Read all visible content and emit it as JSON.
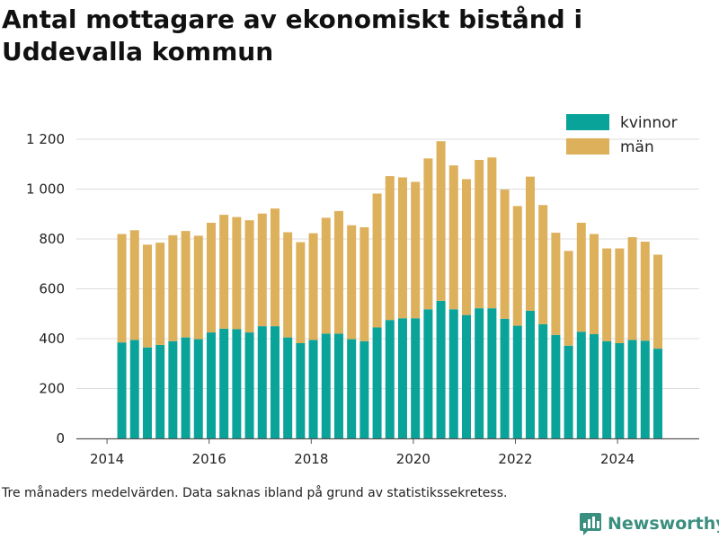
{
  "title": "Antal mottagare av ekonomiskt bistånd i Uddevalla kommun",
  "footnote": "Tre månaders medelvärden. Data saknas ibland på grund av statistikssekretess.",
  "brand": {
    "name": "Newsworthy",
    "icon": "newsworthy-logo-icon"
  },
  "colors": {
    "kvinnor": "#0aa39a",
    "man": "#ddb05c",
    "grid": "#dddddd",
    "axis": "#555555",
    "brand": "#3a8f7e"
  },
  "chart_data": {
    "type": "bar",
    "stacked": true,
    "title": "Antal mottagare av ekonomiskt bistånd i Uddevalla kommun",
    "xlabel": "",
    "ylabel": "",
    "xlim": [
      2013.4,
      2025.6
    ],
    "ylim": [
      0,
      1200
    ],
    "x_ticks": [
      2014,
      2016,
      2018,
      2020,
      2022,
      2024
    ],
    "y_ticks": [
      0,
      200,
      400,
      600,
      800,
      1000,
      1200
    ],
    "y_tick_labels": [
      "0",
      "200",
      "400",
      "600",
      "800",
      "1 000",
      "1 200"
    ],
    "grid": true,
    "legend_position": "top-right",
    "x": [
      2014.29,
      2014.54,
      2014.79,
      2015.04,
      2015.29,
      2015.54,
      2015.79,
      2016.04,
      2016.29,
      2016.54,
      2016.79,
      2017.04,
      2017.29,
      2017.54,
      2017.79,
      2018.04,
      2018.29,
      2018.54,
      2018.79,
      2019.04,
      2019.29,
      2019.54,
      2019.79,
      2020.04,
      2020.29,
      2020.54,
      2020.79,
      2021.04,
      2021.29,
      2021.54,
      2021.79,
      2022.04,
      2022.29,
      2022.54,
      2022.79,
      2023.04,
      2023.29,
      2023.54,
      2023.79,
      2024.04,
      2024.29,
      2024.54,
      2024.79
    ],
    "series": [
      {
        "name": "kvinnor",
        "values": [
          385,
          395,
          365,
          375,
          390,
          405,
          398,
          425,
          440,
          438,
          425,
          450,
          450,
          405,
          382,
          395,
          420,
          420,
          398,
          390,
          445,
          475,
          482,
          482,
          518,
          552,
          518,
          495,
          522,
          522,
          480,
          452,
          512,
          458,
          415,
          372,
          428,
          418,
          390,
          382,
          395,
          392,
          360
        ]
      },
      {
        "name": "män",
        "values": [
          435,
          440,
          412,
          410,
          425,
          427,
          415,
          440,
          457,
          450,
          450,
          452,
          472,
          422,
          405,
          428,
          465,
          492,
          457,
          457,
          537,
          577,
          565,
          547,
          605,
          640,
          577,
          545,
          595,
          605,
          518,
          480,
          538,
          478,
          410,
          380,
          437,
          402,
          372,
          380,
          412,
          397,
          377
        ]
      }
    ]
  }
}
